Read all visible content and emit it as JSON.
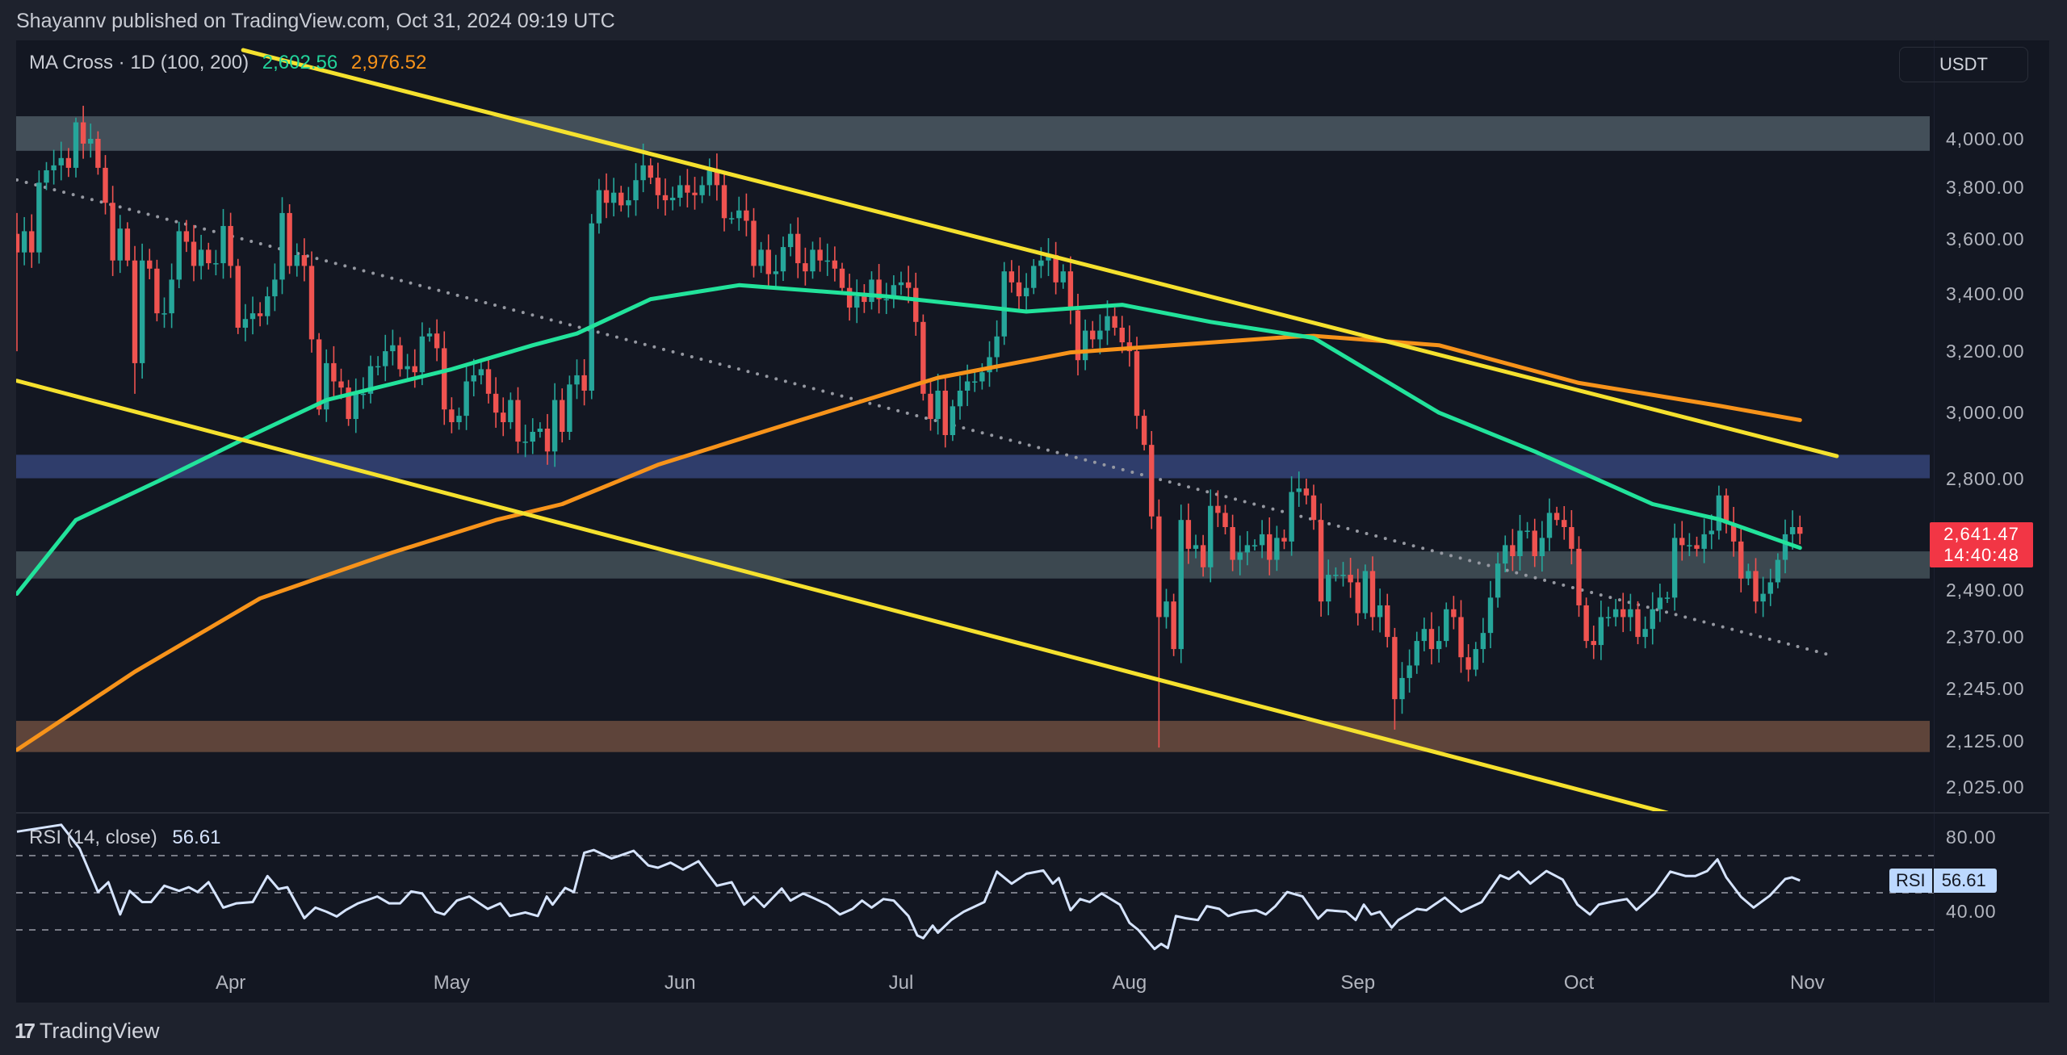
{
  "header": {
    "attribution": "Shayannv published on TradingView.com, Oct 31, 2024 09:19 UTC"
  },
  "legend": {
    "indicator": "MA Cross · 1D (100, 200)",
    "ma100_value": "2,602.56",
    "ma200_value": "2,976.52"
  },
  "rsi_legend": {
    "indicator": "RSI (14, close)",
    "value": "56.61"
  },
  "currency_button": "USDT",
  "last_price": {
    "price": "2,641.47",
    "countdown": "14:40:48"
  },
  "rsi_badge": {
    "name": "RSI",
    "value": "56.61"
  },
  "brand": {
    "logo": "17",
    "name": "TradingView"
  },
  "colors": {
    "up": "#26a69a",
    "down": "#ef5350",
    "ma100": "#22e39b",
    "ma200": "#f7931a",
    "trend": "#f5e12e",
    "rsi": "#d6e4ff",
    "dotted": "#9598a1"
  },
  "chart_data": {
    "type": "candlestick",
    "title": "MA Cross · 1D (100, 200)",
    "x_start_date": "2024-03-03",
    "y_scale": "log",
    "ylim": [
      1990,
      4500
    ],
    "price_ticks": [
      {
        "value": 4000,
        "label": "4,000.00"
      },
      {
        "value": 3800,
        "label": "3,800.00"
      },
      {
        "value": 3600,
        "label": "3,600.00"
      },
      {
        "value": 3400,
        "label": "3,400.00"
      },
      {
        "value": 3200,
        "label": "3,200.00"
      },
      {
        "value": 3000,
        "label": "3,000.00"
      },
      {
        "value": 2800,
        "label": "2,800.00"
      },
      {
        "value": 2490,
        "label": "2,490.00"
      },
      {
        "value": 2370,
        "label": "2,370.00"
      },
      {
        "value": 2245,
        "label": "2,245.00"
      },
      {
        "value": 2125,
        "label": "2,125.00"
      },
      {
        "value": 2025,
        "label": "2,025.00"
      }
    ],
    "time_ticks": [
      {
        "day": 29,
        "label": "Apr"
      },
      {
        "day": 59,
        "label": "May"
      },
      {
        "day": 90,
        "label": "Jun"
      },
      {
        "day": 120,
        "label": "Jul"
      },
      {
        "day": 151,
        "label": "Aug"
      },
      {
        "day": 182,
        "label": "Sep"
      },
      {
        "day": 212,
        "label": "Oct"
      },
      {
        "day": 243,
        "label": "Nov"
      }
    ],
    "first_open": 3620,
    "closes": [
      3550,
      3630,
      3550,
      3820,
      3870,
      3890,
      3920,
      3880,
      4070,
      3980,
      4000,
      3880,
      3740,
      3520,
      3640,
      3520,
      3160,
      3520,
      3490,
      3330,
      3330,
      3450,
      3630,
      3590,
      3500,
      3560,
      3510,
      3510,
      3650,
      3500,
      3280,
      3310,
      3330,
      3320,
      3390,
      3450,
      3700,
      3500,
      3540,
      3500,
      3240,
      3010,
      3160,
      3100,
      3080,
      2980,
      3060,
      3060,
      3150,
      3150,
      3200,
      3220,
      3140,
      3150,
      3130,
      3250,
      3260,
      3210,
      3010,
      2970,
      2990,
      3100,
      3120,
      3140,
      3060,
      3000,
      2970,
      3040,
      2910,
      2910,
      2940,
      2950,
      2880,
      3040,
      2940,
      3090,
      3120,
      3070,
      3660,
      3790,
      3740,
      3780,
      3730,
      3750,
      3830,
      3890,
      3840,
      3770,
      3750,
      3760,
      3810,
      3780,
      3770,
      3810,
      3870,
      3810,
      3680,
      3680,
      3710,
      3670,
      3500,
      3560,
      3470,
      3480,
      3570,
      3620,
      3510,
      3480,
      3560,
      3520,
      3520,
      3490,
      3420,
      3350,
      3390,
      3370,
      3450,
      3380,
      3380,
      3430,
      3440,
      3420,
      3300,
      3060,
      2980,
      3070,
      2930,
      3020,
      3070,
      3100,
      3100,
      3130,
      3180,
      3250,
      3480,
      3440,
      3390,
      3420,
      3500,
      3520,
      3540,
      3440,
      3480,
      3340,
      3170,
      3270,
      3240,
      3270,
      3320,
      3280,
      3230,
      3200,
      2990,
      2900,
      2690,
      2420,
      2460,
      2340,
      2680,
      2600,
      2610,
      2550,
      2720,
      2700,
      2660,
      2570,
      2590,
      2610,
      2610,
      2640,
      2570,
      2630,
      2620,
      2760,
      2770,
      2750,
      2680,
      2460,
      2530,
      2530,
      2530,
      2510,
      2430,
      2540,
      2420,
      2450,
      2370,
      2220,
      2270,
      2300,
      2360,
      2390,
      2340,
      2360,
      2440,
      2420,
      2320,
      2290,
      2340,
      2380,
      2470,
      2560,
      2610,
      2580,
      2650,
      2650,
      2580,
      2630,
      2700,
      2680,
      2660,
      2600,
      2450,
      2360,
      2350,
      2420,
      2420,
      2440,
      2420,
      2440,
      2370,
      2390,
      2440,
      2470,
      2470,
      2630,
      2610,
      2610,
      2600,
      2640,
      2650,
      2750,
      2670,
      2620,
      2520,
      2540,
      2460,
      2480,
      2510,
      2570,
      2640,
      2660,
      2641.47
    ],
    "wick_overrides": [
      {
        "day": 0,
        "low": 3200,
        "high": 3700
      },
      {
        "day": 8,
        "high": 4090
      },
      {
        "day": 16,
        "low": 3060
      },
      {
        "day": 85,
        "high": 3980
      },
      {
        "day": 155,
        "low": 2110
      },
      {
        "day": 174,
        "high": 2820
      },
      {
        "day": 187,
        "low": 2150
      },
      {
        "day": 232,
        "high": 2770
      }
    ],
    "ma100": {
      "name": "MA 100",
      "points": [
        [
          0,
          2480
        ],
        [
          8,
          2680
        ],
        [
          20,
          2800
        ],
        [
          31,
          2920
        ],
        [
          42,
          3040
        ],
        [
          59,
          3140
        ],
        [
          70,
          3220
        ],
        [
          76,
          3260
        ],
        [
          86,
          3380
        ],
        [
          98,
          3430
        ],
        [
          118,
          3390
        ],
        [
          137,
          3336
        ],
        [
          150,
          3360
        ],
        [
          162,
          3300
        ],
        [
          176,
          3245
        ],
        [
          193,
          3000
        ],
        [
          206,
          2880
        ],
        [
          222,
          2725
        ],
        [
          231,
          2682
        ],
        [
          242,
          2602.56
        ]
      ]
    },
    "ma200": {
      "name": "MA 200",
      "points": [
        [
          0,
          2105
        ],
        [
          16,
          2285
        ],
        [
          33,
          2468
        ],
        [
          51,
          2590
        ],
        [
          65,
          2680
        ],
        [
          74,
          2725
        ],
        [
          87,
          2840
        ],
        [
          106,
          2974
        ],
        [
          125,
          3112
        ],
        [
          143,
          3196
        ],
        [
          173,
          3249
        ],
        [
          176,
          3252
        ],
        [
          193,
          3220
        ],
        [
          212,
          3095
        ],
        [
          231,
          3022
        ],
        [
          242,
          2976.52
        ]
      ]
    },
    "zones": [
      {
        "name": "resistance-4000",
        "low": 3950,
        "high": 4096,
        "color": "#434f59"
      },
      {
        "name": "resistance-2800",
        "low": 2800,
        "high": 2870,
        "color": "#2f3d6b"
      },
      {
        "name": "support-2550",
        "low": 2520,
        "high": 2593,
        "color": "#3c4850"
      },
      {
        "name": "support-2150",
        "low": 2100,
        "high": 2170,
        "color": "#5e443a"
      }
    ],
    "trendlines": [
      {
        "name": "channel-upper",
        "from": [
          30.7,
          4391
        ],
        "to": [
          247,
          2866
        ],
        "style": "solid"
      },
      {
        "name": "channel-lower",
        "from": [
          0,
          3102
        ],
        "to": [
          224,
          1970
        ],
        "style": "solid"
      },
      {
        "name": "dotted-trendline",
        "from": [
          0,
          3831
        ],
        "to": [
          246.4,
          2324
        ],
        "style": "dotted"
      }
    ],
    "rsi": {
      "period": 14,
      "bands": [
        70,
        50,
        30
      ],
      "ticks": [
        {
          "value": 80,
          "label": "80.00"
        },
        {
          "value": 40,
          "label": "40.00"
        }
      ],
      "points": [
        [
          0,
          82.9
        ],
        [
          6,
          86.6
        ],
        [
          8.5,
          73.8
        ],
        [
          11,
          50.4
        ],
        [
          12.4,
          55.7
        ],
        [
          14,
          38.3
        ],
        [
          15.3,
          51
        ],
        [
          17,
          45
        ],
        [
          18.2,
          45
        ],
        [
          20,
          53.8
        ],
        [
          22,
          51
        ],
        [
          23.3,
          53
        ],
        [
          24.5,
          50.4
        ],
        [
          26,
          55.7
        ],
        [
          28,
          42
        ],
        [
          29.8,
          44.3
        ],
        [
          32,
          45
        ],
        [
          34,
          59
        ],
        [
          35.5,
          52
        ],
        [
          36.7,
          53
        ],
        [
          39,
          36.3
        ],
        [
          40.5,
          42
        ],
        [
          42,
          39.8
        ],
        [
          43.4,
          37.2
        ],
        [
          44.6,
          40.6
        ],
        [
          46.3,
          44.3
        ],
        [
          48.9,
          48
        ],
        [
          50.5,
          44.3
        ],
        [
          52,
          44.3
        ],
        [
          53.5,
          50.7
        ],
        [
          55,
          49.6
        ],
        [
          56.8,
          39.8
        ],
        [
          58,
          38.3
        ],
        [
          59.7,
          45.8
        ],
        [
          61.4,
          48
        ],
        [
          63.9,
          41.3
        ],
        [
          65.6,
          44.3
        ],
        [
          66.9,
          37.5
        ],
        [
          69,
          39.4
        ],
        [
          70.7,
          37.5
        ],
        [
          71.9,
          48
        ],
        [
          72.7,
          43.6
        ],
        [
          74.4,
          52.6
        ],
        [
          75.6,
          50.4
        ],
        [
          77,
          71.5
        ],
        [
          78.3,
          73
        ],
        [
          79.5,
          70.8
        ],
        [
          80.7,
          68.5
        ],
        [
          82.4,
          70.8
        ],
        [
          83.7,
          72.6
        ],
        [
          85.7,
          64.7
        ],
        [
          87,
          63.5
        ],
        [
          88.7,
          66.2
        ],
        [
          90.4,
          62.5
        ],
        [
          92.5,
          67
        ],
        [
          95,
          53.8
        ],
        [
          97,
          55.7
        ],
        [
          98.7,
          43.6
        ],
        [
          100,
          48
        ],
        [
          101.4,
          42.4
        ],
        [
          103.8,
          52.3
        ],
        [
          105,
          45.8
        ],
        [
          106.7,
          49.6
        ],
        [
          108.4,
          46.6
        ],
        [
          110,
          43.6
        ],
        [
          111.7,
          38.3
        ],
        [
          113.4,
          41.3
        ],
        [
          114.7,
          45.8
        ],
        [
          116,
          42
        ],
        [
          117.6,
          46.6
        ],
        [
          119,
          45.8
        ],
        [
          121,
          37.5
        ],
        [
          122.2,
          27
        ],
        [
          123,
          25.5
        ],
        [
          124.3,
          32.3
        ],
        [
          125,
          28.5
        ],
        [
          126.8,
          35.3
        ],
        [
          128.5,
          39.8
        ],
        [
          131.3,
          45
        ],
        [
          133,
          61.4
        ],
        [
          135,
          54.9
        ],
        [
          137,
          60.2
        ],
        [
          139.3,
          62
        ],
        [
          140.6,
          54.9
        ],
        [
          141.4,
          57.9
        ],
        [
          143,
          40.6
        ],
        [
          144.3,
          46.6
        ],
        [
          145.6,
          45
        ],
        [
          147.2,
          49.6
        ],
        [
          149.7,
          43.6
        ],
        [
          151,
          33.8
        ],
        [
          152.2,
          30
        ],
        [
          154.4,
          19.7
        ],
        [
          155.3,
          22.5
        ],
        [
          156.2,
          20.2
        ],
        [
          157.3,
          37.5
        ],
        [
          158.6,
          36.3
        ],
        [
          160.3,
          35.3
        ],
        [
          161.5,
          42.8
        ],
        [
          163.2,
          41.3
        ],
        [
          164.4,
          37.5
        ],
        [
          166,
          39.4
        ],
        [
          168.2,
          40.6
        ],
        [
          169.5,
          38.3
        ],
        [
          170.8,
          42.8
        ],
        [
          172.4,
          50.4
        ],
        [
          174.5,
          48
        ],
        [
          176.6,
          36
        ],
        [
          177.8,
          40.6
        ],
        [
          180.4,
          39.8
        ],
        [
          181.7,
          35.3
        ],
        [
          182.8,
          43.6
        ],
        [
          183.8,
          38.3
        ],
        [
          185,
          39.8
        ],
        [
          186.6,
          31.2
        ],
        [
          187.5,
          35.3
        ],
        [
          190,
          41.3
        ],
        [
          191.3,
          40.6
        ],
        [
          193.8,
          47.4
        ],
        [
          196,
          39.8
        ],
        [
          198.8,
          45
        ],
        [
          201.3,
          59.4
        ],
        [
          202.5,
          57.4
        ],
        [
          203.8,
          61.4
        ],
        [
          205.4,
          54.9
        ],
        [
          207.6,
          61.7
        ],
        [
          209.8,
          57.1
        ],
        [
          211.8,
          43.6
        ],
        [
          213.5,
          38.3
        ],
        [
          214.7,
          43.6
        ],
        [
          216.7,
          45.4
        ],
        [
          218.5,
          46.6
        ],
        [
          219.8,
          40.8
        ],
        [
          222.3,
          49.6
        ],
        [
          224.4,
          61.4
        ],
        [
          226.5,
          59
        ],
        [
          227.8,
          59
        ],
        [
          229.4,
          61.7
        ],
        [
          230.8,
          68
        ],
        [
          232,
          58.3
        ],
        [
          234,
          47.8
        ],
        [
          235.7,
          42
        ],
        [
          237.9,
          48.4
        ],
        [
          240,
          57.4
        ],
        [
          240.9,
          58.3
        ],
        [
          242,
          56.61
        ]
      ]
    }
  }
}
